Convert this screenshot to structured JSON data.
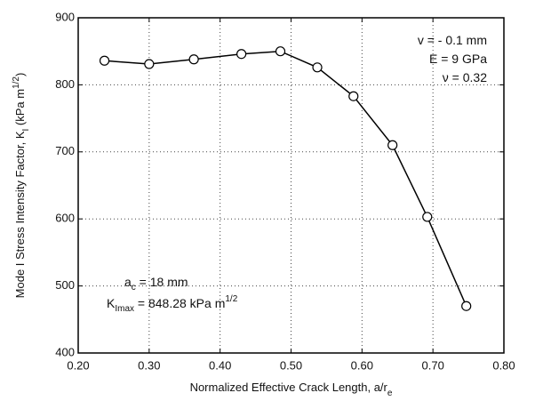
{
  "chart_data": {
    "type": "line",
    "x_label": [
      "Normalized Effective Crack Length, a/r",
      "e"
    ],
    "y_label": [
      "Mode I Stress Intensity Factor, K",
      "I",
      " (kPa m",
      "1/2",
      ")"
    ],
    "annotations": [
      [
        "v = - 0.1 mm"
      ],
      [
        "E = 9 GPa"
      ],
      [
        "ν = 0.32"
      ],
      [
        "a",
        "c",
        " = 18 mm"
      ],
      [
        "K",
        "Imax",
        " = 848.28 kPa m",
        "1/2"
      ]
    ],
    "x": [
      0.237,
      0.3,
      0.363,
      0.43,
      0.485,
      0.537,
      0.588,
      0.643,
      0.692,
      0.747
    ],
    "series": [
      {
        "color": "#000000",
        "values": [
          836,
          831,
          838,
          846,
          850,
          826,
          783,
          710,
          603,
          470
        ]
      }
    ],
    "xlim": [
      0.2,
      0.8
    ],
    "xticks": [
      {
        "value": 0.2,
        "label": "0.20"
      },
      {
        "value": 0.3,
        "label": "0.30"
      },
      {
        "value": 0.4,
        "label": "0.40"
      },
      {
        "value": 0.5,
        "label": "0.50"
      },
      {
        "value": 0.6,
        "label": "0.60"
      },
      {
        "value": 0.7,
        "label": "0.70"
      },
      {
        "value": 0.8,
        "label": "0.80"
      }
    ],
    "ylim": [
      400,
      900
    ],
    "yticks": [
      400,
      500,
      600,
      700,
      800,
      900
    ],
    "grid": true
  }
}
